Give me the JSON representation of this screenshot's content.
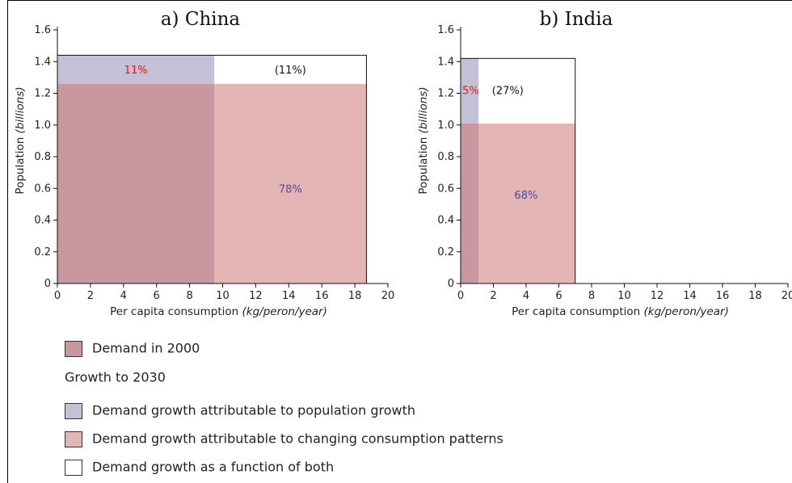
{
  "colors": {
    "demand_2000": "#c9979f",
    "population_growth": "#c4c0d6",
    "consumption_growth": "#e3b5b4",
    "both": "#ffffff",
    "red_label": "#e0181c",
    "blue_label": "#4b4a9e"
  },
  "chart_data": [
    {
      "type": "area",
      "title": "a) China",
      "xlabel_main": "Per capita consumption ",
      "xlabel_unit": "(kg/peron/year)",
      "ylabel_main": "Population ",
      "ylabel_unit": "(billions)",
      "xlim": [
        0,
        20
      ],
      "ylim": [
        0,
        1.6
      ],
      "x_ticks": [
        "0",
        "2",
        "4",
        "6",
        "8",
        "10",
        "12",
        "14",
        "16",
        "18",
        "20"
      ],
      "y_ticks": [
        "0",
        "0.2",
        "0.4",
        "0.6",
        "0.8",
        "1.0",
        "1.2",
        "1.4",
        "1.6"
      ],
      "population_2000": 1.26,
      "population_2030": 1.44,
      "consumption_2000": 9.5,
      "consumption_2030": 18.7,
      "labels": {
        "population_growth": "11%",
        "consumption_growth": "78%",
        "both": "(11%)"
      }
    },
    {
      "type": "area",
      "title": "b) India",
      "xlabel_main": "Per capita consumption ",
      "xlabel_unit": "(kg/peron/year)",
      "ylabel_main": "Population ",
      "ylabel_unit": "(billions)",
      "xlim": [
        0,
        20
      ],
      "ylim": [
        0,
        1.6
      ],
      "x_ticks": [
        "0",
        "2",
        "4",
        "6",
        "8",
        "10",
        "12",
        "14",
        "16",
        "18",
        "20"
      ],
      "y_ticks": [
        "0",
        "0.2",
        "0.4",
        "0.6",
        "0.8",
        "1.0",
        "1.2",
        "1.4",
        "1.6"
      ],
      "population_2000": 1.01,
      "population_2030": 1.42,
      "consumption_2000": 1.1,
      "consumption_2030": 7.0,
      "labels": {
        "population_growth": "5%",
        "consumption_growth": "68%",
        "both": "(27%)"
      }
    }
  ],
  "legend": {
    "demand_2000": "Demand in 2000",
    "heading": "Growth to 2030",
    "population_growth": "Demand growth attributable to population growth",
    "consumption_growth": "Demand growth attributable to changing consumption patterns",
    "both": "Demand growth as a function of both"
  }
}
